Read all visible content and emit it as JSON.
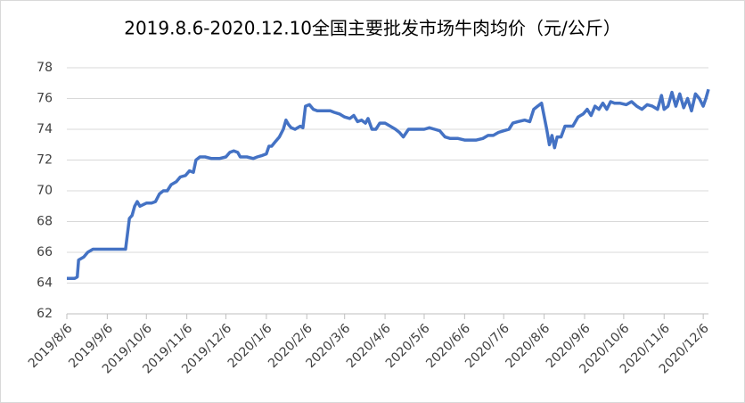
{
  "chart_data": {
    "type": "line",
    "title": "2019.8.6-2020.12.10全国主要批发市场牛肉均价（元/公斤）",
    "x": [
      "2019/8/6",
      "2019/8/12",
      "2019/8/14",
      "2019/8/15",
      "2019/8/19",
      "2019/8/22",
      "2019/8/26",
      "2019/9/6",
      "2019/9/20",
      "2019/9/23",
      "2019/9/25",
      "2019/9/27",
      "2019/9/29",
      "2019/10/1",
      "2019/10/6",
      "2019/10/10",
      "2019/10/13",
      "2019/10/16",
      "2019/10/19",
      "2019/10/22",
      "2019/10/25",
      "2019/10/29",
      "2019/11/1",
      "2019/11/5",
      "2019/11/8",
      "2019/11/11",
      "2019/11/13",
      "2019/11/16",
      "2019/11/20",
      "2019/11/25",
      "2019/12/1",
      "2019/12/6",
      "2019/12/9",
      "2019/12/12",
      "2019/12/15",
      "2019/12/17",
      "2019/12/22",
      "2019/12/27",
      "2019/12/30",
      "2020/1/3",
      "2020/1/6",
      "2020/1/8",
      "2020/1/10",
      "2020/1/13",
      "2020/1/16",
      "2020/1/19",
      "2020/1/21",
      "2020/1/23",
      "2020/1/25",
      "2020/1/28",
      "2020/2/1",
      "2020/2/3",
      "2020/2/5",
      "2020/2/8",
      "2020/2/11",
      "2020/2/14",
      "2020/2/18",
      "2020/2/24",
      "2020/2/27",
      "2020/3/2",
      "2020/3/6",
      "2020/3/10",
      "2020/3/13",
      "2020/3/16",
      "2020/3/19",
      "2020/3/22",
      "2020/3/24",
      "2020/3/27",
      "2020/3/30",
      "2020/4/2",
      "2020/4/6",
      "2020/4/10",
      "2020/4/14",
      "2020/4/17",
      "2020/4/20",
      "2020/4/24",
      "2020/4/28",
      "2020/5/2",
      "2020/5/6",
      "2020/5/10",
      "2020/5/14",
      "2020/5/18",
      "2020/5/22",
      "2020/5/26",
      "2020/6/1",
      "2020/6/6",
      "2020/6/10",
      "2020/6/15",
      "2020/6/20",
      "2020/6/24",
      "2020/6/28",
      "2020/7/2",
      "2020/7/6",
      "2020/7/10",
      "2020/7/13",
      "2020/7/17",
      "2020/7/22",
      "2020/7/26",
      "2020/7/29",
      "2020/8/1",
      "2020/8/4",
      "2020/8/8",
      "2020/8/10",
      "2020/8/12",
      "2020/8/14",
      "2020/8/16",
      "2020/8/19",
      "2020/8/22",
      "2020/8/25",
      "2020/8/28",
      "2020/9/1",
      "2020/9/5",
      "2020/9/8",
      "2020/9/11",
      "2020/9/14",
      "2020/9/17",
      "2020/9/20",
      "2020/9/23",
      "2020/9/26",
      "2020/9/29",
      "2020/10/3",
      "2020/10/8",
      "2020/10/12",
      "2020/10/16",
      "2020/10/20",
      "2020/10/24",
      "2020/10/28",
      "2020/11/1",
      "2020/11/4",
      "2020/11/6",
      "2020/11/9",
      "2020/11/12",
      "2020/11/15",
      "2020/11/18",
      "2020/11/21",
      "2020/11/24",
      "2020/11/27",
      "2020/11/30",
      "2020/12/3",
      "2020/12/6",
      "2020/12/8",
      "2020/12/10"
    ],
    "values": [
      64.3,
      64.3,
      64.4,
      65.5,
      65.7,
      66.0,
      66.2,
      66.2,
      66.2,
      68.2,
      68.4,
      69.0,
      69.3,
      69.0,
      69.2,
      69.2,
      69.3,
      69.8,
      70.0,
      70.0,
      70.4,
      70.6,
      70.9,
      71.0,
      71.3,
      71.2,
      72.0,
      72.2,
      72.2,
      72.1,
      72.1,
      72.2,
      72.5,
      72.6,
      72.5,
      72.2,
      72.2,
      72.1,
      72.2,
      72.3,
      72.4,
      72.9,
      72.9,
      73.2,
      73.5,
      74.0,
      74.6,
      74.3,
      74.1,
      74.0,
      74.2,
      74.1,
      75.5,
      75.6,
      75.3,
      75.2,
      75.2,
      75.2,
      75.1,
      75.0,
      74.8,
      74.7,
      74.9,
      74.5,
      74.6,
      74.4,
      74.7,
      74.0,
      74.0,
      74.4,
      74.4,
      74.2,
      74.0,
      73.8,
      73.5,
      74.0,
      74.0,
      74.0,
      74.0,
      74.1,
      74.0,
      73.9,
      73.5,
      73.4,
      73.4,
      73.3,
      73.3,
      73.3,
      73.4,
      73.6,
      73.6,
      73.8,
      73.9,
      74.0,
      74.4,
      74.5,
      74.6,
      74.5,
      75.3,
      75.5,
      75.7,
      74.0,
      73.0,
      73.6,
      72.8,
      73.5,
      73.5,
      74.2,
      74.2,
      74.2,
      74.8,
      75.0,
      75.3,
      74.9,
      75.5,
      75.3,
      75.7,
      75.3,
      75.8,
      75.7,
      75.7,
      75.6,
      75.8,
      75.5,
      75.3,
      75.6,
      75.5,
      75.3,
      76.2,
      75.3,
      75.5,
      76.4,
      75.5,
      76.3,
      75.4,
      76.0,
      75.2,
      76.3,
      76.0,
      75.5,
      76.0,
      76.6
    ],
    "color": "#4472c4",
    "xticks": [
      "2019/8/6",
      "2019/9/6",
      "2019/10/6",
      "2019/11/6",
      "2019/12/6",
      "2020/1/6",
      "2020/2/6",
      "2020/3/6",
      "2020/4/6",
      "2020/5/6",
      "2020/6/6",
      "2020/7/6",
      "2020/8/6",
      "2020/9/6",
      "2020/10/6",
      "2020/11/6",
      "2020/12/6"
    ],
    "ylim": [
      62,
      78
    ],
    "yticks": [
      62,
      64,
      66,
      68,
      70,
      72,
      74,
      76,
      78
    ],
    "grid": true
  }
}
